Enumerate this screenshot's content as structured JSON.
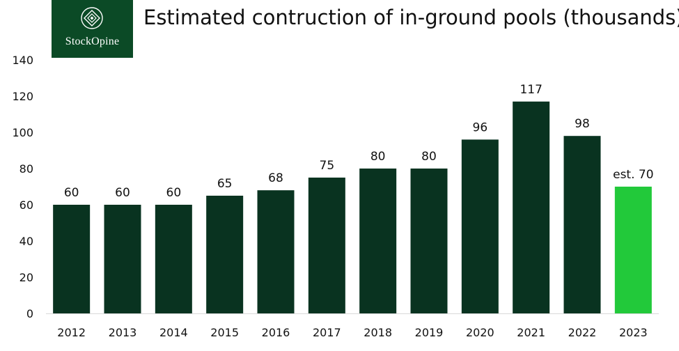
{
  "logo": {
    "text": "StockOpine",
    "icon": "diamond-emblem-icon"
  },
  "chart_data": {
    "type": "bar",
    "title": "Estimated contruction of in-ground pools (thousands)",
    "categories": [
      "2012",
      "2013",
      "2014",
      "2015",
      "2016",
      "2017",
      "2018",
      "2019",
      "2020",
      "2021",
      "2022",
      "2023"
    ],
    "values": [
      60,
      60,
      60,
      65,
      68,
      75,
      80,
      80,
      96,
      117,
      98,
      70
    ],
    "data_labels": [
      "60",
      "60",
      "60",
      "65",
      "68",
      "75",
      "80",
      "80",
      "96",
      "117",
      "98",
      "est. 70"
    ],
    "ylim": [
      0,
      140
    ],
    "yticks": [
      0,
      20,
      40,
      60,
      80,
      100,
      120,
      140
    ],
    "xlabel": "",
    "ylabel": "",
    "grid": false,
    "legend": "none",
    "colors": {
      "bar": "#093320",
      "estimate_bar": "#22c93a"
    },
    "estimate_index": 11
  }
}
